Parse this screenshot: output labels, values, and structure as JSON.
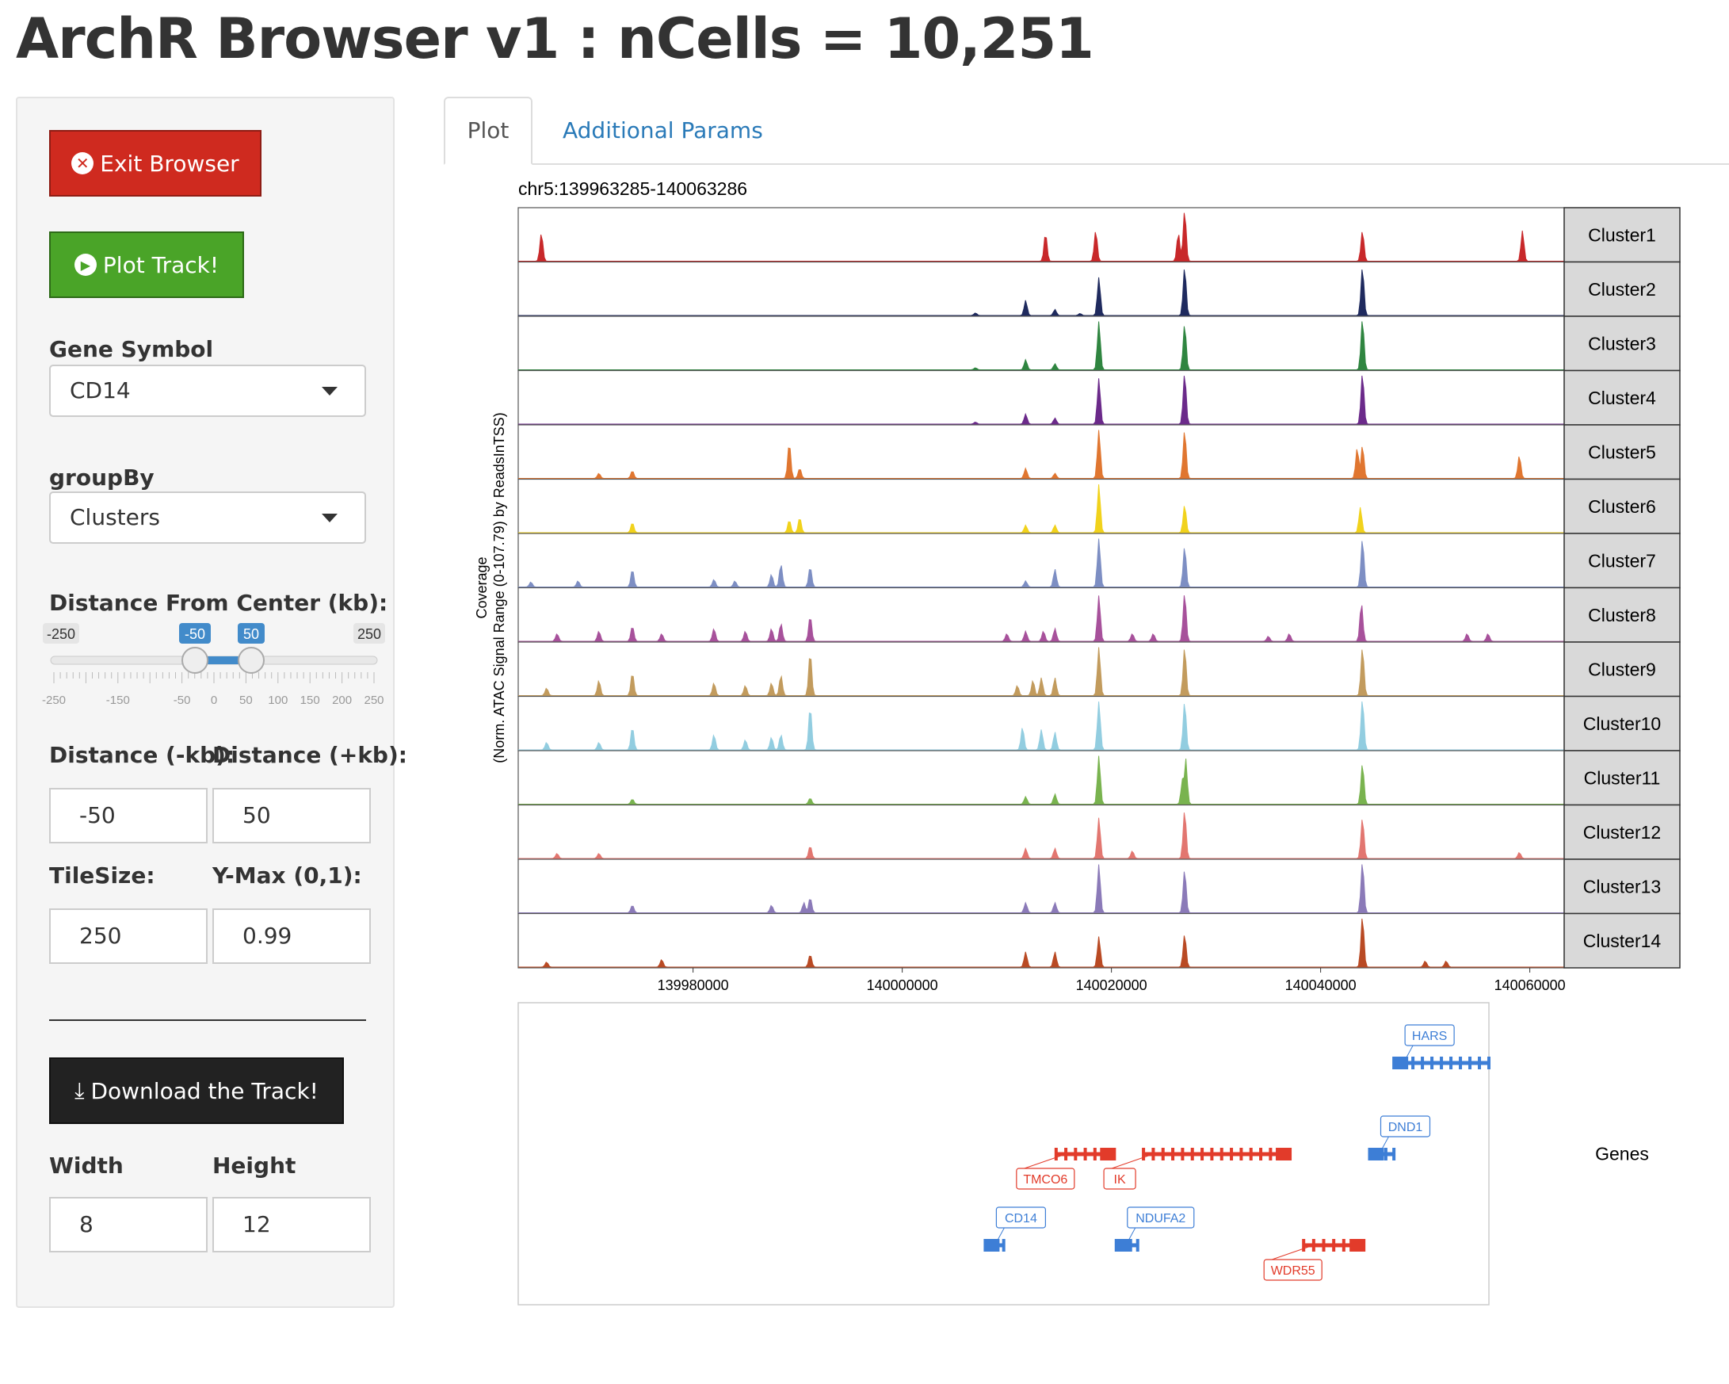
{
  "app": {
    "title": "ArchR Browser v1 : nCells = 10,251"
  },
  "sidebar": {
    "exit_label": "Exit Browser",
    "plot_label": "Plot Track!",
    "gene_symbol": {
      "label": "Gene Symbol",
      "value": "CD14"
    },
    "group_by": {
      "label": "groupBy",
      "value": "Clusters"
    },
    "distance_slider": {
      "label": "Distance From Center (kb):",
      "min": -250,
      "max": 250,
      "low": -50,
      "high": 50,
      "min_label": "-250",
      "max_label": "250",
      "low_label": "-50",
      "high_label": "50",
      "ticks": [
        "-250",
        "-150",
        "-50",
        "0",
        "50",
        "100",
        "150",
        "200",
        "250"
      ]
    },
    "distance_minus": {
      "label": "Distance (-kb):",
      "value": "-50"
    },
    "distance_plus": {
      "label": "Distance (+kb):",
      "value": "50"
    },
    "tile_size": {
      "label": "TileSize:",
      "value": "250"
    },
    "ymax": {
      "label": "Y-Max (0,1):",
      "value": "0.99"
    },
    "download_label": "Download the Track!",
    "width": {
      "label": "Width",
      "value": "8"
    },
    "height": {
      "label": "Height",
      "value": "12"
    }
  },
  "tabs": [
    {
      "label": "Plot",
      "active": true
    },
    {
      "label": "Additional Params",
      "active": false
    }
  ],
  "chart_data": {
    "type": "area",
    "title": "chr5:139963285-140063286",
    "ylabel": "Coverage\n(Norm. ATAC Signal Range (0-107.79) by ReadsInTSS)",
    "xlim": [
      139963285,
      140063286
    ],
    "x_ticks": [
      139980000,
      140000000,
      140020000,
      140040000,
      140060000
    ],
    "x_tick_labels": [
      "139980000",
      "140000000",
      "140020000",
      "140040000",
      "140060000"
    ],
    "series": [
      {
        "name": "Cluster1",
        "color": "#c8282a",
        "peaks": [
          [
            139965500,
            0.55
          ],
          [
            140013700,
            0.55
          ],
          [
            140018500,
            0.6
          ],
          [
            140026400,
            0.55
          ],
          [
            140027000,
            1.0
          ],
          [
            140044000,
            0.6
          ],
          [
            140059300,
            0.6
          ]
        ]
      },
      {
        "name": "Cluster2",
        "color": "#1f2a5e",
        "peaks": [
          [
            140011800,
            0.3
          ],
          [
            140014600,
            0.12
          ],
          [
            140018800,
            0.75
          ],
          [
            140027000,
            0.95
          ],
          [
            140044000,
            0.95
          ],
          [
            140007000,
            0.05
          ],
          [
            140017000,
            0.04
          ]
        ]
      },
      {
        "name": "Cluster3",
        "color": "#2f8540",
        "peaks": [
          [
            140011800,
            0.2
          ],
          [
            140014600,
            0.12
          ],
          [
            140018800,
            0.95
          ],
          [
            140027000,
            0.9
          ],
          [
            140044000,
            1.0
          ],
          [
            140007000,
            0.04
          ]
        ]
      },
      {
        "name": "Cluster4",
        "color": "#6b2a8a",
        "peaks": [
          [
            140011800,
            0.2
          ],
          [
            140014600,
            0.12
          ],
          [
            140018800,
            0.9
          ],
          [
            140027000,
            1.0
          ],
          [
            140044000,
            1.0
          ],
          [
            140007000,
            0.04
          ]
        ]
      },
      {
        "name": "Cluster5",
        "color": "#e07630",
        "peaks": [
          [
            139971000,
            0.1
          ],
          [
            139974200,
            0.15
          ],
          [
            139989200,
            0.7
          ],
          [
            139990200,
            0.2
          ],
          [
            140011800,
            0.2
          ],
          [
            140014600,
            0.1
          ],
          [
            140018800,
            0.95
          ],
          [
            140027000,
            0.95
          ],
          [
            140043500,
            0.6
          ],
          [
            140044000,
            0.65
          ],
          [
            140059000,
            0.45
          ]
        ]
      },
      {
        "name": "Cluster6",
        "color": "#f1d21c",
        "peaks": [
          [
            139974200,
            0.2
          ],
          [
            139989200,
            0.25
          ],
          [
            139990200,
            0.3
          ],
          [
            140011800,
            0.15
          ],
          [
            140014600,
            0.15
          ],
          [
            140018800,
            0.95
          ],
          [
            140027000,
            0.55
          ],
          [
            140043800,
            0.5
          ]
        ]
      },
      {
        "name": "Cluster7",
        "color": "#7d8ec3",
        "peaks": [
          [
            139964500,
            0.1
          ],
          [
            139969000,
            0.12
          ],
          [
            139974200,
            0.35
          ],
          [
            139982000,
            0.15
          ],
          [
            139984000,
            0.12
          ],
          [
            139987500,
            0.25
          ],
          [
            139988400,
            0.45
          ],
          [
            139991200,
            0.4
          ],
          [
            140011800,
            0.12
          ],
          [
            140014600,
            0.35
          ],
          [
            140018800,
            0.95
          ],
          [
            140027000,
            0.8
          ],
          [
            140044000,
            0.95
          ]
        ]
      },
      {
        "name": "Cluster8",
        "color": "#a7519b",
        "peaks": [
          [
            139967000,
            0.15
          ],
          [
            139971000,
            0.2
          ],
          [
            139974200,
            0.3
          ],
          [
            139977000,
            0.15
          ],
          [
            139982000,
            0.25
          ],
          [
            139985000,
            0.2
          ],
          [
            139987500,
            0.25
          ],
          [
            139988400,
            0.35
          ],
          [
            139991200,
            0.5
          ],
          [
            140010000,
            0.15
          ],
          [
            140011800,
            0.2
          ],
          [
            140013500,
            0.2
          ],
          [
            140014600,
            0.25
          ],
          [
            140018800,
            0.9
          ],
          [
            140022000,
            0.15
          ],
          [
            140024000,
            0.15
          ],
          [
            140027000,
            0.95
          ],
          [
            140035000,
            0.1
          ],
          [
            140037000,
            0.15
          ],
          [
            140043900,
            0.75
          ],
          [
            140054000,
            0.15
          ],
          [
            140056000,
            0.15
          ]
        ]
      },
      {
        "name": "Cluster9",
        "color": "#c29b5d",
        "peaks": [
          [
            139966000,
            0.15
          ],
          [
            139971000,
            0.3
          ],
          [
            139974200,
            0.45
          ],
          [
            139982000,
            0.25
          ],
          [
            139985000,
            0.2
          ],
          [
            139987500,
            0.25
          ],
          [
            139988400,
            0.4
          ],
          [
            139991200,
            0.85
          ],
          [
            140011000,
            0.2
          ],
          [
            140012500,
            0.3
          ],
          [
            140013300,
            0.35
          ],
          [
            140014600,
            0.35
          ],
          [
            140018800,
            0.95
          ],
          [
            140027000,
            0.95
          ],
          [
            140044000,
            0.95
          ]
        ]
      },
      {
        "name": "Cluster10",
        "color": "#92cde0",
        "peaks": [
          [
            139966000,
            0.15
          ],
          [
            139971000,
            0.15
          ],
          [
            139974200,
            0.45
          ],
          [
            139982000,
            0.3
          ],
          [
            139985000,
            0.2
          ],
          [
            139987500,
            0.25
          ],
          [
            139988400,
            0.3
          ],
          [
            139991200,
            0.85
          ],
          [
            140011500,
            0.45
          ],
          [
            140013300,
            0.4
          ],
          [
            140014600,
            0.35
          ],
          [
            140018800,
            0.95
          ],
          [
            140027000,
            0.95
          ],
          [
            140044000,
            1.0
          ]
        ]
      },
      {
        "name": "Cluster11",
        "color": "#79b34f",
        "peaks": [
          [
            139974200,
            0.1
          ],
          [
            139991200,
            0.12
          ],
          [
            140011800,
            0.15
          ],
          [
            140014600,
            0.2
          ],
          [
            140018800,
            0.95
          ],
          [
            140026800,
            0.5
          ],
          [
            140027100,
            0.9
          ],
          [
            140044000,
            0.8
          ]
        ]
      },
      {
        "name": "Cluster12",
        "color": "#e27670",
        "peaks": [
          [
            139967000,
            0.1
          ],
          [
            139971000,
            0.1
          ],
          [
            139991200,
            0.25
          ],
          [
            140011800,
            0.2
          ],
          [
            140014600,
            0.2
          ],
          [
            140018800,
            0.8
          ],
          [
            140022000,
            0.15
          ],
          [
            140027000,
            0.95
          ],
          [
            140044000,
            0.8
          ],
          [
            140059000,
            0.12
          ]
        ]
      },
      {
        "name": "Cluster13",
        "color": "#8b7ab8",
        "peaks": [
          [
            139974200,
            0.15
          ],
          [
            139987500,
            0.15
          ],
          [
            139990600,
            0.2
          ],
          [
            139991200,
            0.3
          ],
          [
            140011800,
            0.2
          ],
          [
            140014600,
            0.2
          ],
          [
            140018800,
            0.95
          ],
          [
            140027000,
            0.85
          ],
          [
            140044000,
            1.0
          ]
        ]
      },
      {
        "name": "Cluster14",
        "color": "#b94a24",
        "peaks": [
          [
            139966000,
            0.1
          ],
          [
            139977000,
            0.15
          ],
          [
            139991200,
            0.25
          ],
          [
            140011800,
            0.3
          ],
          [
            140014600,
            0.3
          ],
          [
            140018800,
            0.6
          ],
          [
            140027000,
            0.65
          ],
          [
            140044000,
            1.0
          ],
          [
            140050000,
            0.12
          ],
          [
            140052000,
            0.12
          ]
        ]
      }
    ],
    "genes_track": {
      "label": "Genes",
      "genes": [
        {
          "name": "HARS",
          "strand": "-",
          "start": 140053500,
          "end": 140063286,
          "row": 0
        },
        {
          "name": "DND1",
          "strand": "-",
          "start": 140051000,
          "end": 140053500,
          "row": 1
        },
        {
          "name": "TMCO6",
          "strand": "+",
          "start": 140018700,
          "end": 140024700,
          "row": 1
        },
        {
          "name": "IK",
          "strand": "+",
          "start": 140027700,
          "end": 140042800,
          "row": 1
        },
        {
          "name": "CD14",
          "strand": "-",
          "start": 140011400,
          "end": 140013300,
          "row": 2
        },
        {
          "name": "NDUFA2",
          "strand": "-",
          "start": 140024900,
          "end": 140027100,
          "row": 2
        },
        {
          "name": "WDR55",
          "strand": "+",
          "start": 140044200,
          "end": 140050400,
          "row": 2
        }
      ],
      "colors": {
        "-": "#3d7ed6",
        "+": "#e23b2a"
      }
    }
  }
}
